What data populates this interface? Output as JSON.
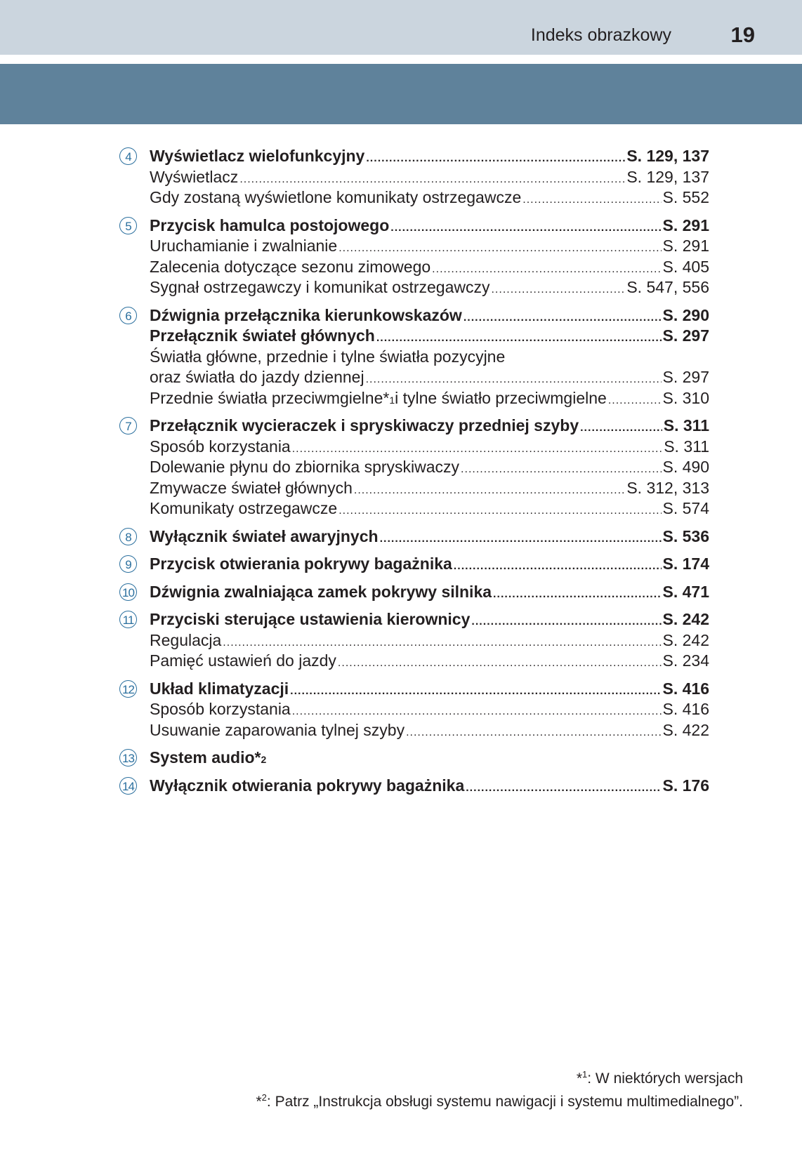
{
  "header": {
    "title": "Indeks obrazkowy",
    "page_number": "19",
    "colors": {
      "light_band": "#cbd5de",
      "dark_band": "#5f829b",
      "circle": "#2a6f9e"
    }
  },
  "groups": [
    {
      "number": "4",
      "items": [
        {
          "text": "Wyświetlacz wielofunkcyjny",
          "page": "S. 129, 137",
          "bold": true
        },
        {
          "text": "Wyświetlacz",
          "page": "S. 129, 137"
        },
        {
          "text": "Gdy zostaną wyświetlone komunikaty ostrzegawcze",
          "page": "S. 552"
        }
      ]
    },
    {
      "number": "5",
      "items": [
        {
          "text": "Przycisk hamulca postojowego",
          "page": "S. 291",
          "bold": true
        },
        {
          "text": "Uruchamianie i zwalnianie",
          "page": "S. 291"
        },
        {
          "text": "Zalecenia dotyczące sezonu zimowego",
          "page": "S. 405"
        },
        {
          "text": "Sygnał ostrzegawczy i komunikat ostrzegawczy",
          "page": "S. 547, 556"
        }
      ]
    },
    {
      "number": "6",
      "items": [
        {
          "text": "Dźwignia przełącznika kierunkowskazów",
          "page": "S. 290",
          "bold": true
        },
        {
          "text": "Przełącznik świateł głównych",
          "page": "S. 297",
          "bold": true
        },
        {
          "text": "Światła główne, przednie i tylne światła pozycyjne"
        },
        {
          "text": "oraz światła do jazdy dziennej",
          "page": "S. 297"
        },
        {
          "text": "Przednie światła przeciwmgielne*",
          "sup": "1",
          "text2": " i tylne światło przeciwmgielne",
          "page": "S. 310"
        }
      ]
    },
    {
      "number": "7",
      "items": [
        {
          "text": "Przełącznik wycieraczek i spryskiwaczy przedniej szyby",
          "page": "S. 311",
          "bold": true
        },
        {
          "text": "Sposób korzystania",
          "page": "S. 311"
        },
        {
          "text": "Dolewanie płynu do zbiornika spryskiwaczy",
          "page": "S. 490"
        },
        {
          "text": "Zmywacze świateł głównych",
          "page": "S. 312, 313"
        },
        {
          "text": "Komunikaty ostrzegawcze",
          "page": "S. 574"
        }
      ]
    },
    {
      "number": "8",
      "items": [
        {
          "text": "Wyłącznik świateł awaryjnych",
          "page": "S. 536",
          "bold": true
        }
      ]
    },
    {
      "number": "9",
      "items": [
        {
          "text": "Przycisk otwierania pokrywy bagażnika",
          "page": "S. 174",
          "bold": true
        }
      ]
    },
    {
      "number": "10",
      "items": [
        {
          "text": "Dźwignia zwalniająca zamek pokrywy silnika",
          "page": "S. 471",
          "bold": true
        }
      ]
    },
    {
      "number": "11",
      "items": [
        {
          "text": "Przyciski sterujące ustawienia kierownicy",
          "page": "S. 242",
          "bold": true
        },
        {
          "text": "Regulacja",
          "page": "S. 242"
        },
        {
          "text": "Pamięć ustawień do jazdy",
          "page": "S. 234"
        }
      ]
    },
    {
      "number": "12",
      "items": [
        {
          "text": "Układ klimatyzacji",
          "page": "S. 416",
          "bold": true
        },
        {
          "text": "Sposób korzystania",
          "page": "S. 416"
        },
        {
          "text": "Usuwanie zaparowania tylnej szyby",
          "page": "S. 422"
        }
      ]
    },
    {
      "number": "13",
      "items": [
        {
          "text": "System audio*",
          "sup": "2",
          "bold": true
        }
      ]
    },
    {
      "number": "14",
      "items": [
        {
          "text": "Wyłącznik otwierania pokrywy bagażnika",
          "page": "S. 176",
          "bold": true
        }
      ]
    }
  ],
  "footnotes": [
    {
      "mark": "*",
      "sup": "1",
      "text": ": W niektórych wersjach"
    },
    {
      "mark": "*",
      "sup": "2",
      "text": ": Patrz „Instrukcja obsługi systemu nawigacji i systemu multimedialnego”."
    }
  ]
}
